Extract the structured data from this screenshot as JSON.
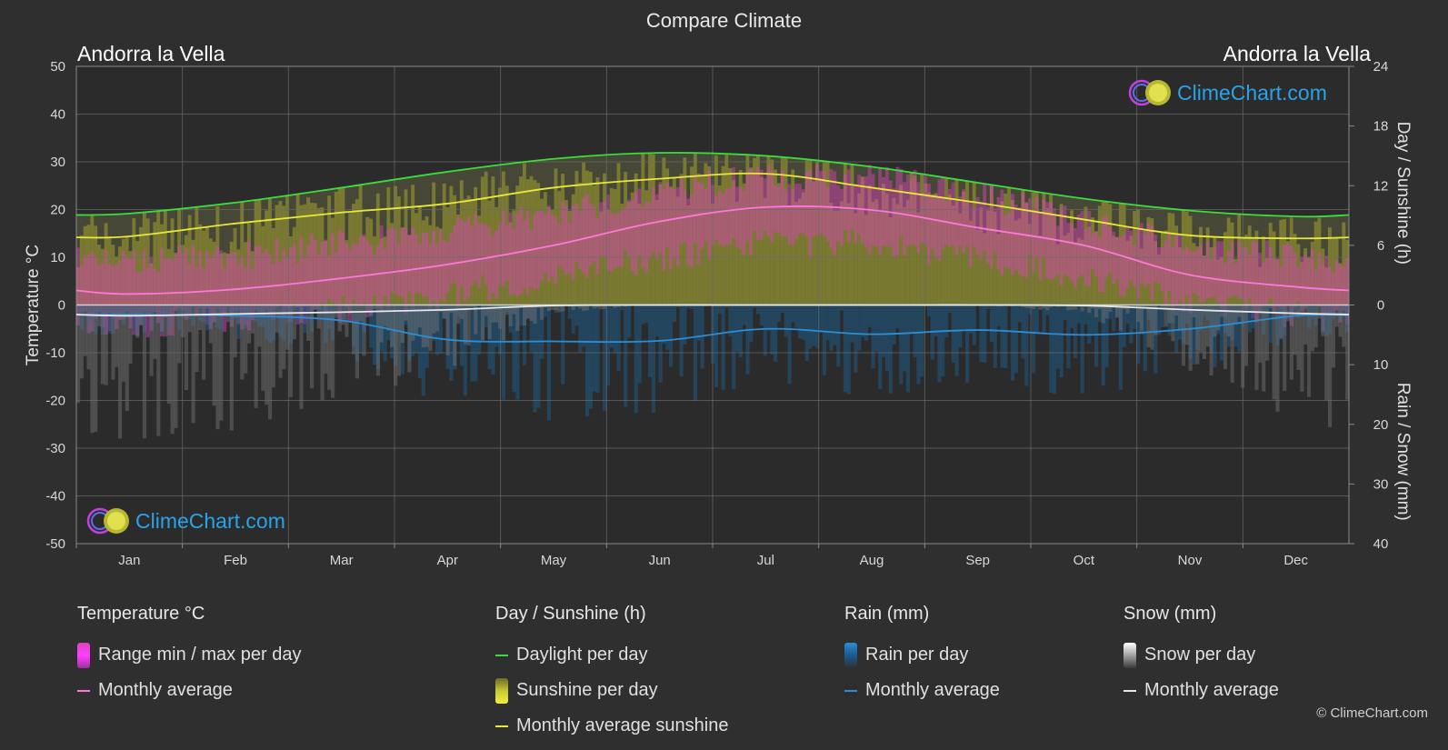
{
  "title": "Compare Climate",
  "location_left": "Andorra la Vella",
  "location_right": "Andorra la Vella",
  "logo_text": "ClimeChart.com",
  "copyright": "© ClimeChart.com",
  "legend": {
    "temperature": {
      "heading": "Temperature °C",
      "range_label": "Range min / max per day",
      "avg_label": "Monthly average"
    },
    "sun": {
      "heading": "Day / Sunshine (h)",
      "daylight_label": "Daylight per day",
      "sunshine_label": "Sunshine per day",
      "avg_label": "Monthly average sunshine"
    },
    "rain": {
      "heading": "Rain (mm)",
      "per_day_label": "Rain per day",
      "avg_label": "Monthly average"
    },
    "snow": {
      "heading": "Snow (mm)",
      "per_day_label": "Snow per day",
      "avg_label": "Monthly average"
    }
  },
  "colors": {
    "background": "#2f2f2f",
    "daylight": "#3ddc3d",
    "sunshine_avg": "#e8e83a",
    "temp_avg": "#ff77dd",
    "temp_range": "#e040c0",
    "rain": "#2a8fd6",
    "snow": "#e8e8e8",
    "logo_text": "#2ba3e8"
  },
  "chart_data": {
    "type": "area",
    "months": [
      "Jan",
      "Feb",
      "Mar",
      "Apr",
      "May",
      "Jun",
      "Jul",
      "Aug",
      "Sep",
      "Oct",
      "Nov",
      "Dec"
    ],
    "left_axis": {
      "label": "Temperature °C",
      "ticks": [
        50,
        40,
        30,
        20,
        10,
        0,
        -10,
        -20,
        -30,
        -40,
        -50
      ],
      "range": [
        -50,
        50
      ]
    },
    "right_axis_top": {
      "label": "Day / Sunshine (h)",
      "ticks": [
        24,
        18,
        12,
        6,
        0
      ],
      "range": [
        0,
        24
      ]
    },
    "right_axis_bottom": {
      "label": "Rain / Snow (mm)",
      "ticks": [
        0,
        10,
        20,
        30,
        40
      ],
      "range": [
        0,
        40
      ]
    },
    "grid": true,
    "series": [
      {
        "name": "Daylight per day",
        "unit": "h",
        "values": [
          9.2,
          10.3,
          11.8,
          13.4,
          14.7,
          15.3,
          15.0,
          13.9,
          12.3,
          10.7,
          9.5,
          8.9
        ]
      },
      {
        "name": "Monthly average sunshine",
        "unit": "h",
        "values": [
          6.9,
          8.2,
          9.3,
          10.2,
          11.8,
          12.7,
          13.2,
          11.8,
          10.3,
          8.6,
          7.0,
          6.7
        ]
      },
      {
        "name": "Temperature monthly average",
        "unit": "°C",
        "values": [
          2.3,
          3.3,
          5.6,
          8.5,
          12.5,
          17.5,
          20.5,
          19.9,
          16.2,
          12.5,
          6.3,
          3.8
        ]
      },
      {
        "name": "Temperature max (range top)",
        "unit": "°C",
        "values": [
          9,
          10,
          13,
          15,
          19,
          24,
          27,
          27,
          23,
          18,
          12,
          10
        ]
      },
      {
        "name": "Temperature min (range bottom)",
        "unit": "°C",
        "values": [
          -4,
          -3,
          -1,
          2,
          6,
          10,
          13,
          13,
          10,
          6,
          0,
          -2
        ]
      },
      {
        "name": "Rain monthly average",
        "unit": "mm",
        "values": [
          1.6,
          1.8,
          2.6,
          5.8,
          6.1,
          6.0,
          4.0,
          4.9,
          4.2,
          5.0,
          4.0,
          1.8
        ]
      },
      {
        "name": "Snow monthly average",
        "unit": "mm",
        "values": [
          1.8,
          1.5,
          1.2,
          0.8,
          0.1,
          0.0,
          0.0,
          0.0,
          0.0,
          0.1,
          0.8,
          1.4
        ]
      }
    ]
  }
}
